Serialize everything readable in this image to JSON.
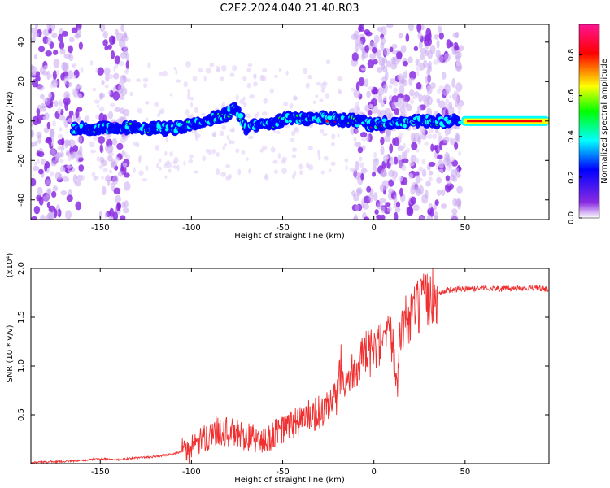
{
  "figure_title": "C2E2.2024.040.21.40.R03",
  "colorbar": {
    "label": "Normalized spectral amplitude",
    "ticks": [
      "0.0",
      "0.2",
      "0.4",
      "0.6",
      "0.8"
    ],
    "colors": [
      "#ffffff",
      "#8a2be2",
      "#0000ff",
      "#00ffff",
      "#00ff00",
      "#ffff00",
      "#ff0000",
      "#ff1493"
    ]
  },
  "chart_data": [
    {
      "type": "heatmap",
      "title": "",
      "xlabel": "Height of straight line (km)",
      "ylabel": "Frequency (Hz)",
      "xlim": [
        -188,
        96
      ],
      "ylim": [
        -50,
        49
      ],
      "xticks": [
        "-150",
        "-100",
        "-50",
        "0",
        "50"
      ],
      "xtick_values": [
        -150,
        -100,
        -50,
        0,
        50
      ],
      "yticks": [
        "-40",
        "-20",
        "0",
        "20",
        "40"
      ],
      "ytick_values": [
        -40,
        -20,
        0,
        20,
        40
      ],
      "ridge": {
        "x": [
          -165,
          -150,
          -135,
          -120,
          -105,
          -95,
          -85,
          -75,
          -70,
          -65,
          -55,
          -45,
          -38,
          -30,
          -22,
          -15,
          -8,
          -2,
          10,
          25,
          40,
          48,
          60,
          75,
          94
        ],
        "y": [
          -4,
          -4,
          -3,
          -4,
          -3,
          -1,
          2,
          6,
          -4,
          -2,
          -1,
          2,
          1,
          2,
          1,
          0,
          0,
          -2,
          -1,
          0,
          0,
          0,
          0,
          0,
          0
        ]
      },
      "vertical_stripes": [
        [
          -188,
          -160
        ],
        [
          -150,
          -135
        ],
        [
          -12,
          48
        ]
      ]
    },
    {
      "type": "line",
      "title": "",
      "xlabel": "Height of straight line (km)",
      "ylabel": "SNR (10 * v/v)",
      "y_multiplier": "(x10⁴)",
      "xlim": [
        -188,
        96
      ],
      "ylim": [
        0,
        2.0
      ],
      "xticks": [
        "-150",
        "-100",
        "-50",
        "0",
        "50"
      ],
      "xtick_values": [
        -150,
        -100,
        -50,
        0,
        50
      ],
      "yticks": [
        "0.5",
        "1.0",
        "1.5",
        "2.0"
      ],
      "ytick_values": [
        0.5,
        1.0,
        1.5,
        2.0
      ],
      "series": [
        {
          "color": "#f03030",
          "x": [
            -188,
            -175,
            -160,
            -150,
            -140,
            -130,
            -120,
            -110,
            -100,
            -95,
            -90,
            -85,
            -80,
            -75,
            -70,
            -65,
            -60,
            -55,
            -50,
            -45,
            -40,
            -35,
            -30,
            -25,
            -20,
            -18,
            -15,
            -10,
            -5,
            0,
            5,
            10,
            13,
            15,
            20,
            25,
            30,
            35,
            40,
            50,
            60,
            70,
            80,
            90,
            96
          ],
          "y": [
            0.01,
            0.02,
            0.03,
            0.05,
            0.04,
            0.06,
            0.07,
            0.1,
            0.15,
            0.22,
            0.3,
            0.35,
            0.32,
            0.3,
            0.28,
            0.25,
            0.22,
            0.3,
            0.35,
            0.4,
            0.45,
            0.48,
            0.52,
            0.55,
            0.7,
            1.0,
            0.85,
            1.0,
            1.1,
            1.15,
            1.2,
            1.3,
            0.9,
            1.4,
            1.5,
            1.6,
            1.68,
            1.73,
            1.78,
            1.79,
            1.8,
            1.79,
            1.8,
            1.8,
            1.78
          ]
        }
      ]
    }
  ]
}
